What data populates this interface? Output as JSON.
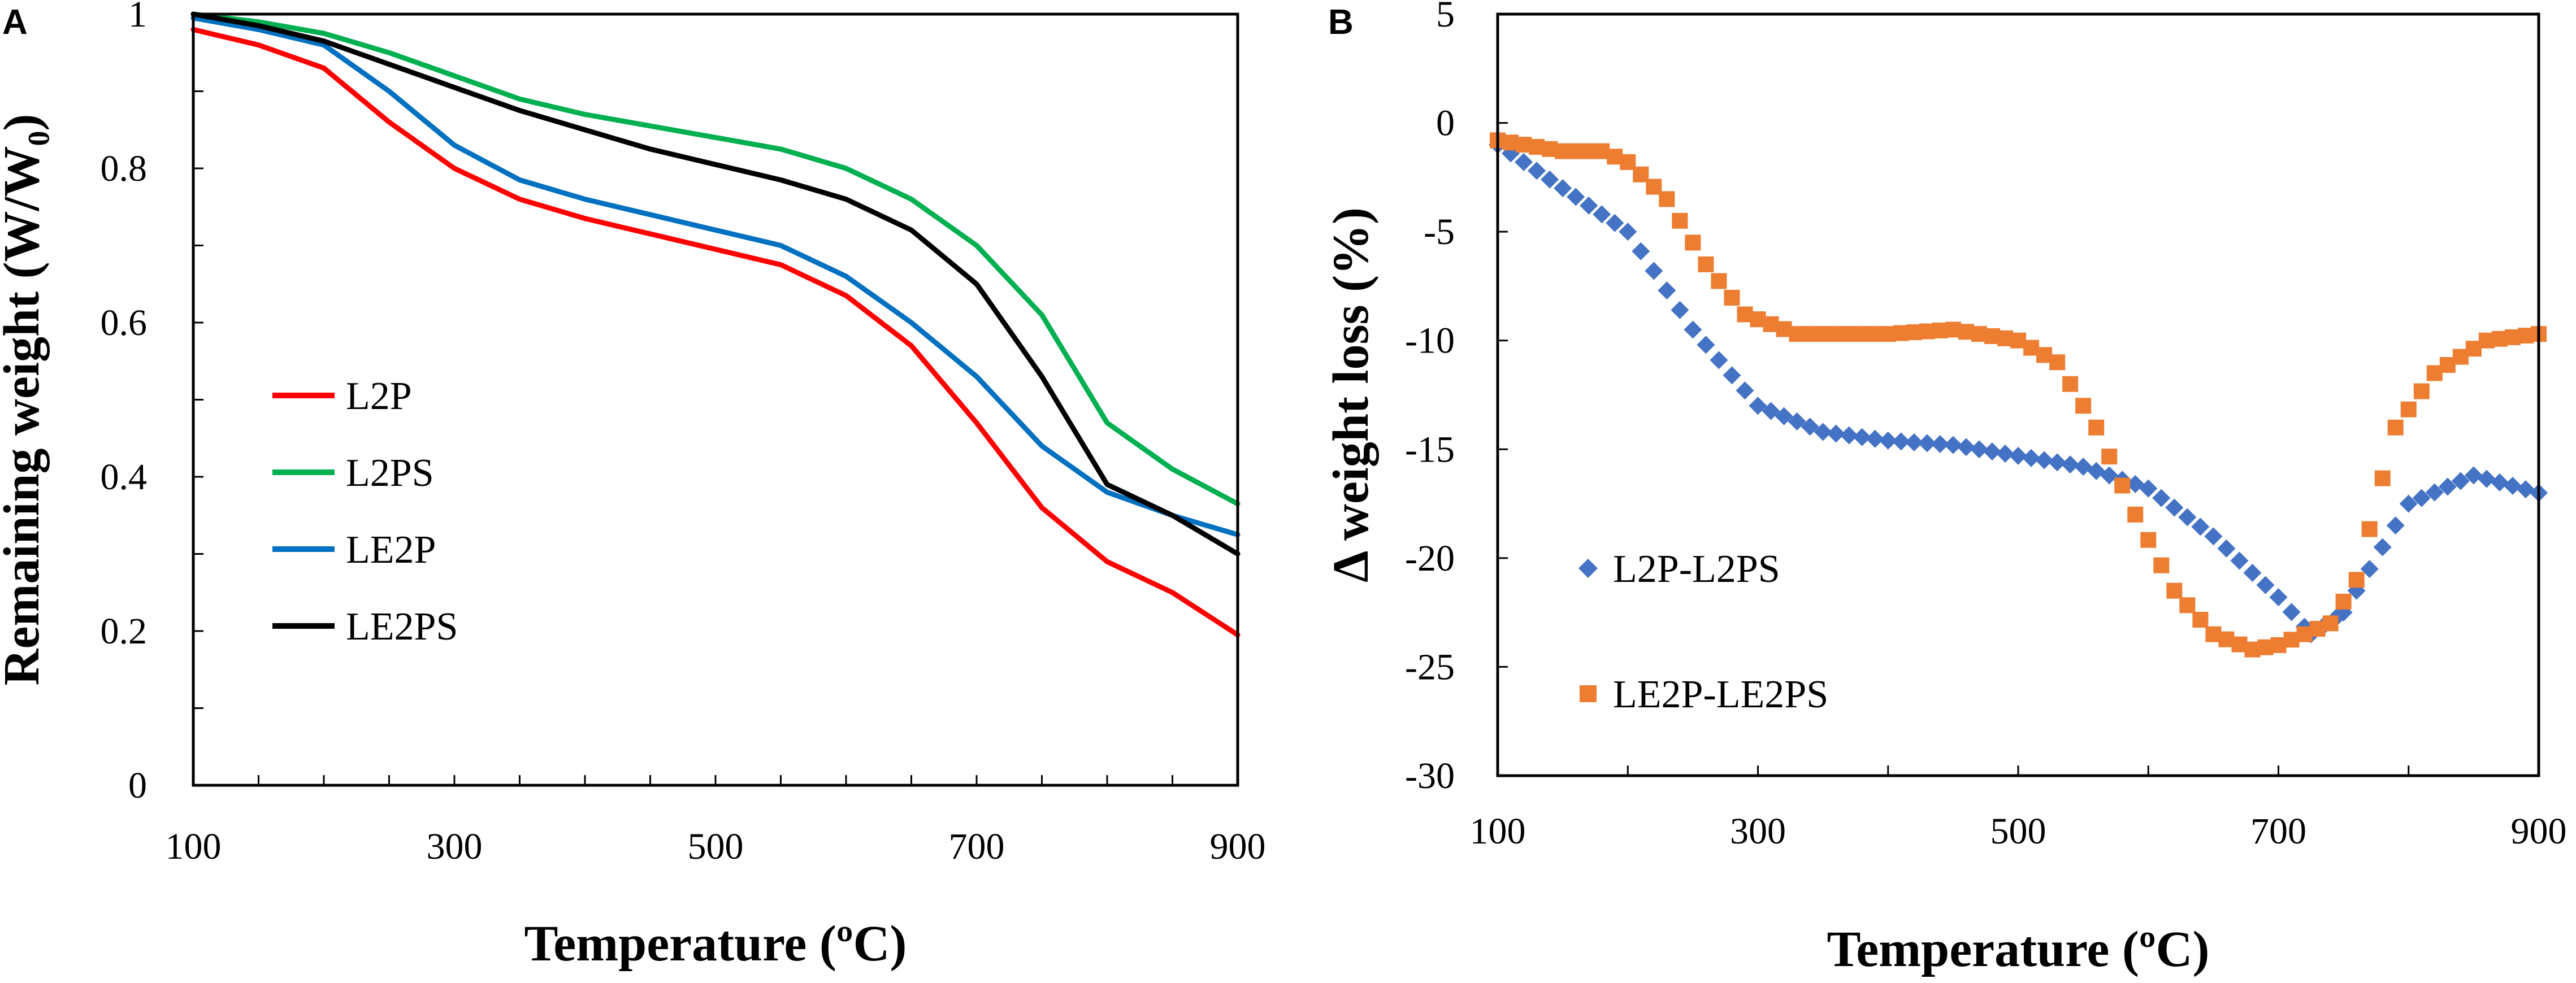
{
  "chart_data": [
    {
      "panel": "A",
      "type": "line",
      "xlabel": "Temperature (ºC)",
      "ylabel": "Remaining weight (W/W₀)",
      "xlim": [
        100,
        900
      ],
      "ylim": [
        0,
        1
      ],
      "xticks": [
        100,
        300,
        500,
        700,
        900
      ],
      "yticks": [
        0,
        0.2,
        0.4,
        0.6,
        0.8,
        1
      ],
      "ytick_labels": [
        "0",
        "0.2",
        "0.4",
        "0.6",
        "0.8",
        "1"
      ],
      "legend_position": "center-left",
      "x": [
        100,
        150,
        200,
        250,
        300,
        350,
        400,
        450,
        500,
        550,
        600,
        650,
        700,
        750,
        800,
        850,
        900
      ],
      "series": [
        {
          "name": "L2P",
          "color": "#ff0000",
          "values": [
            0.98,
            0.96,
            0.93,
            0.86,
            0.8,
            0.76,
            0.735,
            0.715,
            0.695,
            0.675,
            0.635,
            0.57,
            0.47,
            0.36,
            0.29,
            0.25,
            0.195
          ]
        },
        {
          "name": "L2PS",
          "color": "#00b050",
          "values": [
            1.0,
            0.99,
            0.975,
            0.95,
            0.92,
            0.89,
            0.87,
            0.855,
            0.84,
            0.825,
            0.8,
            0.76,
            0.7,
            0.61,
            0.47,
            0.41,
            0.365
          ]
        },
        {
          "name": "LE2P",
          "color": "#0070c0",
          "values": [
            0.995,
            0.98,
            0.96,
            0.9,
            0.83,
            0.785,
            0.76,
            0.74,
            0.72,
            0.7,
            0.66,
            0.6,
            0.53,
            0.44,
            0.38,
            0.35,
            0.325
          ]
        },
        {
          "name": "LE2PS",
          "color": "#000000",
          "values": [
            1.0,
            0.985,
            0.965,
            0.935,
            0.905,
            0.875,
            0.85,
            0.825,
            0.805,
            0.785,
            0.76,
            0.72,
            0.65,
            0.53,
            0.39,
            0.35,
            0.3
          ]
        }
      ]
    },
    {
      "panel": "B",
      "type": "scatter",
      "xlabel": "Temperature (ºC)",
      "ylabel": "Δ weight loss (%)",
      "xlim": [
        100,
        900
      ],
      "ylim": [
        -30,
        5
      ],
      "xticks": [
        100,
        300,
        500,
        700,
        900
      ],
      "yticks": [
        5,
        0,
        -5,
        -10,
        -15,
        -20,
        -25,
        -30
      ],
      "legend_position": "bottom-left",
      "series": [
        {
          "name": "L2P-L2PS",
          "color": "#4472c4",
          "marker": "diamond",
          "x": [
            100,
            150,
            200,
            250,
            300,
            350,
            400,
            450,
            500,
            550,
            600,
            650,
            700,
            725,
            750,
            800,
            850,
            900
          ],
          "values": [
            -1.0,
            -3.0,
            -5.0,
            -9.5,
            -13.0,
            -14.2,
            -14.6,
            -14.8,
            -15.3,
            -15.8,
            -16.8,
            -19.0,
            -21.8,
            -23.5,
            -22.5,
            -17.5,
            -16.2,
            -17.0
          ]
        },
        {
          "name": "LE2P-LE2PS",
          "color": "#ed7d31",
          "marker": "square",
          "x": [
            100,
            150,
            180,
            200,
            230,
            260,
            290,
            330,
            400,
            450,
            500,
            530,
            560,
            590,
            620,
            650,
            680,
            700,
            740,
            760,
            790,
            820,
            860,
            900
          ],
          "values": [
            -0.8,
            -1.3,
            -1.3,
            -1.8,
            -3.5,
            -6.5,
            -8.8,
            -9.7,
            -9.7,
            -9.5,
            -10.0,
            -11.0,
            -14.0,
            -18.0,
            -21.5,
            -23.5,
            -24.2,
            -24.0,
            -23.0,
            -21.0,
            -14.0,
            -11.5,
            -10.0,
            -9.7
          ]
        }
      ]
    }
  ]
}
